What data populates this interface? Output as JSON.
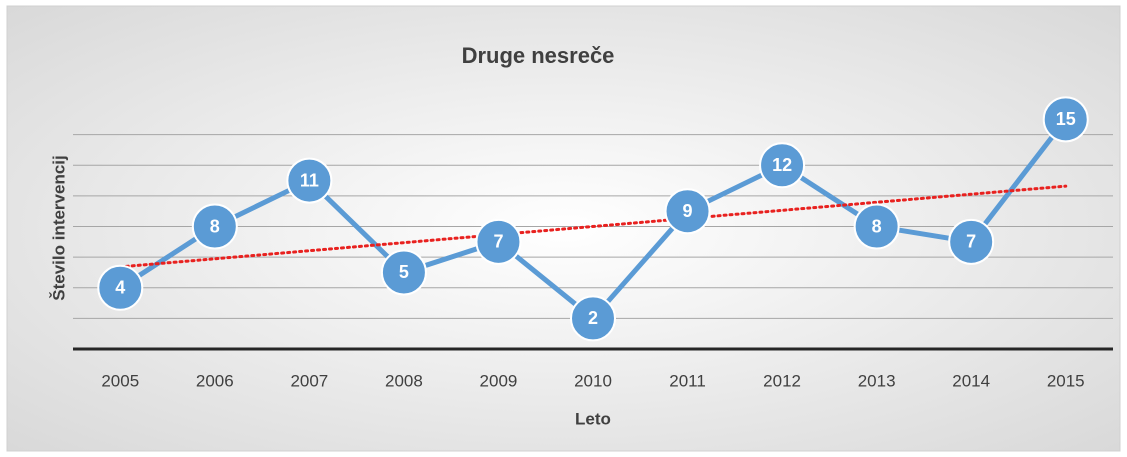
{
  "chart_data": {
    "type": "line",
    "title": "Druge nesreče",
    "x_label": "Leto",
    "y_label": "Število intervencij",
    "categories": [
      "2005",
      "2006",
      "2007",
      "2008",
      "2009",
      "2010",
      "2011",
      "2012",
      "2013",
      "2014",
      "2015"
    ],
    "values": [
      4,
      8,
      11,
      5,
      7,
      2,
      9,
      12,
      8,
      7,
      15
    ],
    "color": "#5b9bd5",
    "ylim": [
      0,
      16
    ],
    "yticks": [
      0,
      2,
      4,
      6,
      8,
      10,
      12,
      14
    ],
    "grid": true,
    "trendline": {
      "type": "linear",
      "color": "#e8211f"
    }
  }
}
